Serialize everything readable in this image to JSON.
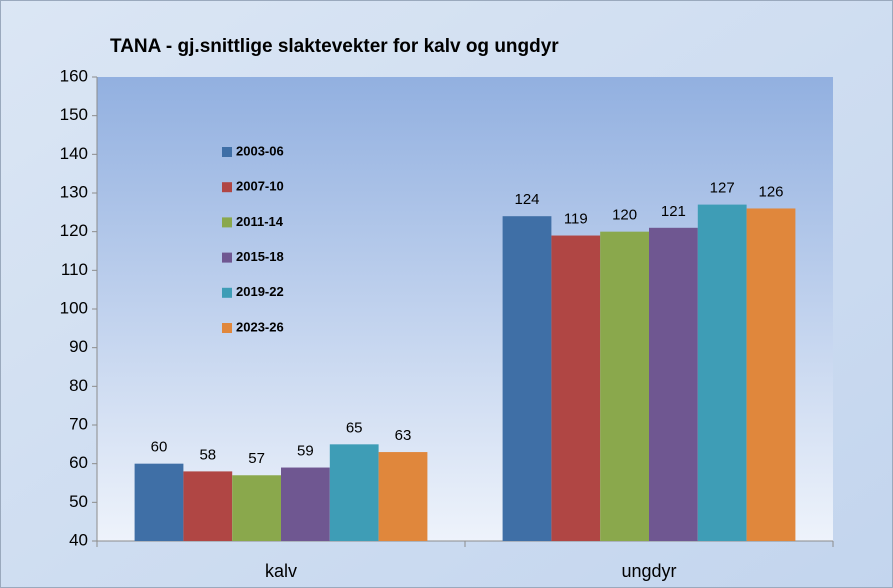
{
  "chart_data": {
    "type": "bar",
    "title": "TANA - gj.snittlige slaktevekter for kalv og ungdyr",
    "categories": [
      "kalv",
      "ungdyr"
    ],
    "series": [
      {
        "name": "2003-06",
        "color": "#3f6fa6",
        "values": [
          60,
          124
        ]
      },
      {
        "name": "2007-10",
        "color": "#b04644",
        "values": [
          58,
          119
        ]
      },
      {
        "name": "2011-14",
        "color": "#8aa84c",
        "values": [
          57,
          120
        ]
      },
      {
        "name": "2015-18",
        "color": "#6f5791",
        "values": [
          59,
          121
        ]
      },
      {
        "name": "2019-22",
        "color": "#3e9db6",
        "values": [
          65,
          127
        ]
      },
      {
        "name": "2023-26",
        "color": "#e0873c",
        "values": [
          63,
          126
        ]
      }
    ],
    "ylim": [
      40,
      160
    ],
    "yticks": [
      40,
      50,
      60,
      70,
      80,
      90,
      100,
      110,
      120,
      130,
      140,
      150,
      160
    ],
    "grid": false,
    "legend": "upper left"
  }
}
